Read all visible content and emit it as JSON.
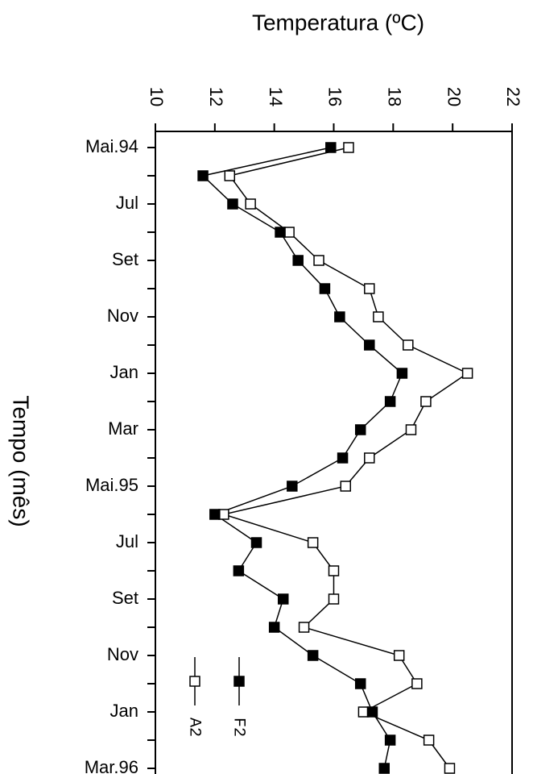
{
  "chart_data": {
    "type": "line",
    "title": "Temperatura (ºC)",
    "y_label": "Tempo (mês)",
    "categories": [
      "Mai.94",
      null,
      "Jul",
      null,
      "Set",
      null,
      "Nov",
      null,
      "Jan",
      null,
      "Mar",
      null,
      "Mai.95",
      null,
      "Jul",
      null,
      "Set",
      null,
      "Nov",
      null,
      "Jan",
      null,
      "Mar.96"
    ],
    "series": [
      {
        "name": "A2",
        "color": "#ffffff",
        "values": [
          16.5,
          12.5,
          13.2,
          14.5,
          15.5,
          17.2,
          17.5,
          18.5,
          20.5,
          19.1,
          18.6,
          17.2,
          16.4,
          12.3,
          15.3,
          16.0,
          16.0,
          15.0,
          18.2,
          18.8,
          17.0,
          19.2,
          19.9
        ]
      },
      {
        "name": "F2",
        "color": "#000000",
        "values": [
          15.9,
          11.6,
          12.6,
          14.2,
          14.8,
          15.7,
          16.2,
          17.2,
          18.3,
          17.9,
          16.9,
          16.3,
          14.6,
          12.0,
          13.4,
          12.8,
          14.3,
          14.0,
          15.3,
          16.9,
          17.3,
          17.9,
          17.7
        ]
      }
    ],
    "xlim": [
      10,
      22
    ],
    "xticks": [
      10,
      12,
      14,
      16,
      18,
      20,
      22
    ]
  }
}
